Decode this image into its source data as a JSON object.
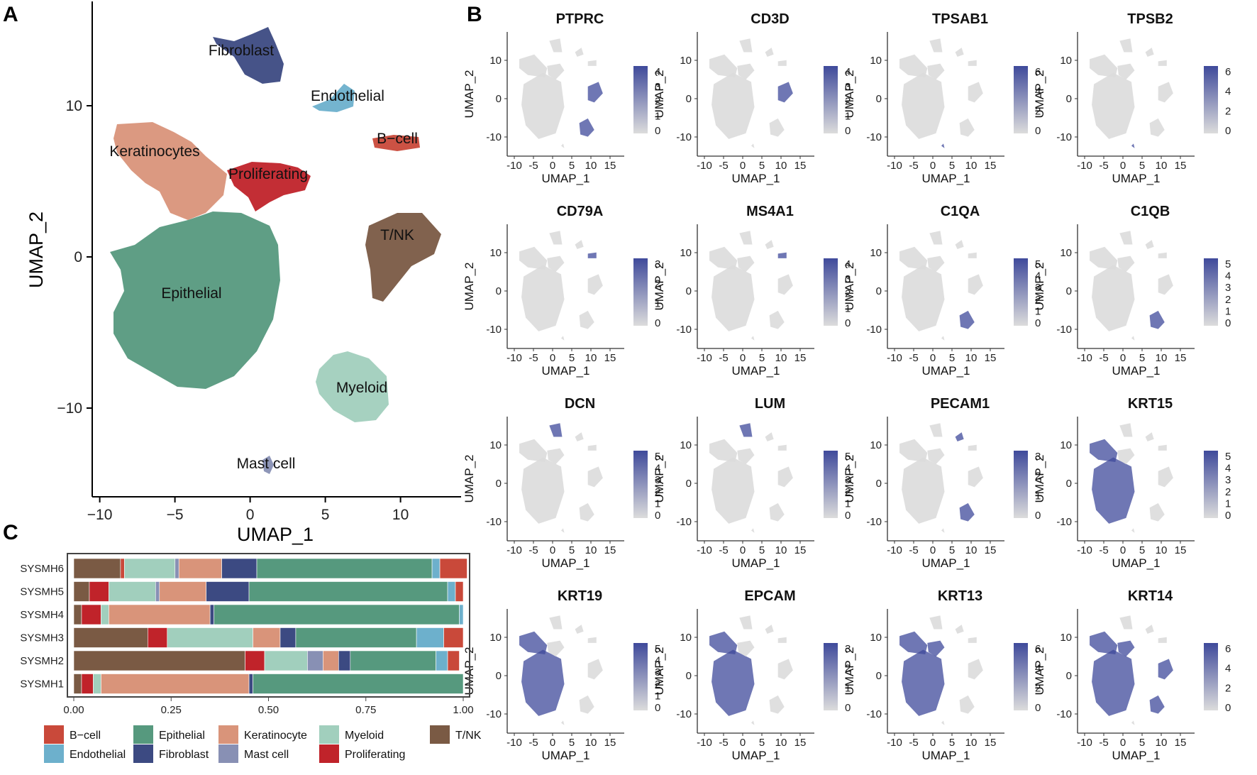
{
  "panels": {
    "a": "A",
    "b": "B",
    "c": "C"
  },
  "colors": {
    "B-cell": "#c9493a",
    "Endothelial": "#6db0cc",
    "Epithelial": "#56997e",
    "Fibroblast": "#3c4a82",
    "Keratinocyte": "#d9947a",
    "Mast cell": "#8890b4",
    "Myeloid": "#a1cfbd",
    "Proliferating": "#c0232a",
    "T/NK": "#7a5a44",
    "feature_low": "#dcdcdc",
    "feature_high": "#3f4a9b"
  },
  "umap": {
    "xlabel": "UMAP_1",
    "ylabel": "UMAP_2",
    "xticks": [
      "−10",
      "−5",
      "0",
      "5",
      "10"
    ],
    "yticks": [
      "10",
      "0",
      "−10"
    ],
    "clusters": [
      {
        "name": "Fibroblast",
        "color_key": "Fibroblast"
      },
      {
        "name": "Endothelial",
        "color_key": "Endothelial"
      },
      {
        "name": "B−cell",
        "color_key": "B-cell"
      },
      {
        "name": "Keratinocytes",
        "color_key": "Keratinocyte"
      },
      {
        "name": "Proliferating",
        "color_key": "Proliferating"
      },
      {
        "name": "T/NK",
        "color_key": "T/NK"
      },
      {
        "name": "Epithelial",
        "color_key": "Epithelial"
      },
      {
        "name": "Myeloid",
        "color_key": "Myeloid"
      },
      {
        "name": "Mast cell",
        "color_key": "Mast cell"
      }
    ]
  },
  "feature_plots": {
    "xlabel": "UMAP_1",
    "ylabel": "UMAP_2",
    "xticks": [
      "-10",
      "-5",
      "0",
      "5",
      "10",
      "15"
    ],
    "yticks": [
      "10",
      "0",
      "-10"
    ],
    "genes": [
      {
        "name": "PTPRC",
        "scale": [
          "4",
          "3",
          "2",
          "1",
          "0"
        ],
        "target": [
          "tnk",
          "myeloid"
        ]
      },
      {
        "name": "CD3D",
        "scale": [
          "4",
          "3",
          "2",
          "1",
          "0"
        ],
        "target": [
          "tnk"
        ]
      },
      {
        "name": "TPSAB1",
        "scale": [
          "6",
          "4",
          "2",
          "0"
        ],
        "target": [
          "mast"
        ]
      },
      {
        "name": "TPSB2",
        "scale": [
          "6",
          "4",
          "2",
          "0"
        ],
        "target": [
          "mast"
        ]
      },
      {
        "name": "CD79A",
        "scale": [
          "3",
          "2",
          "1",
          "0"
        ],
        "target": [
          "bcell"
        ]
      },
      {
        "name": "MS4A1",
        "scale": [
          "4",
          "3",
          "2",
          "1",
          "0"
        ],
        "target": [
          "bcell"
        ]
      },
      {
        "name": "C1QA",
        "scale": [
          "5",
          "4",
          "3",
          "2",
          "1",
          "0"
        ],
        "target": [
          "myeloid"
        ]
      },
      {
        "name": "C1QB",
        "scale": [
          "5",
          "4",
          "3",
          "2",
          "1",
          "0"
        ],
        "target": [
          "myeloid"
        ]
      },
      {
        "name": "DCN",
        "scale": [
          "5",
          "4",
          "3",
          "2",
          "1",
          "0"
        ],
        "target": [
          "fibro"
        ]
      },
      {
        "name": "LUM",
        "scale": [
          "5",
          "4",
          "3",
          "2",
          "1",
          "0"
        ],
        "target": [
          "fibro"
        ]
      },
      {
        "name": "PECAM1",
        "scale": [
          "3",
          "2",
          "1",
          "0"
        ],
        "target": [
          "endo",
          "myeloid"
        ]
      },
      {
        "name": "KRT15",
        "scale": [
          "5",
          "4",
          "3",
          "2",
          "1",
          "0"
        ],
        "target": [
          "kera",
          "epi"
        ]
      },
      {
        "name": "KRT19",
        "scale": [
          "5",
          "4",
          "3",
          "2",
          "1",
          "0"
        ],
        "target": [
          "kera",
          "epi"
        ]
      },
      {
        "name": "EPCAM",
        "scale": [
          "3",
          "2",
          "1",
          "0"
        ],
        "target": [
          "epi",
          "kera"
        ]
      },
      {
        "name": "KRT13",
        "scale": [
          "6",
          "4",
          "2",
          "0"
        ],
        "target": [
          "epi",
          "kera",
          "prolif"
        ]
      },
      {
        "name": "KRT14",
        "scale": [
          "6",
          "4",
          "2",
          "0"
        ],
        "target": [
          "epi",
          "kera",
          "prolif",
          "tnk",
          "myeloid"
        ]
      }
    ]
  },
  "chart_data": {
    "type": "bar",
    "orientation": "horizontal-stacked",
    "categories": [
      "SYSMH6",
      "SYSMH5",
      "SYSMH4",
      "SYSMH3",
      "SYSMH2",
      "SYSMH1"
    ],
    "xticks": [
      "0.00",
      "0.25",
      "0.50",
      "0.75",
      "1.00"
    ],
    "xlim": [
      0,
      1
    ],
    "series": [
      {
        "name": "T/NK",
        "values": [
          0.12,
          0.04,
          0.02,
          0.19,
          0.44,
          0.02
        ]
      },
      {
        "name": "B−cell",
        "values": [
          0.01,
          0.0,
          0.0,
          0.0,
          0.0,
          0.0
        ]
      },
      {
        "name": "Proliferating",
        "values": [
          0.0,
          0.05,
          0.05,
          0.05,
          0.05,
          0.03
        ]
      },
      {
        "name": "Myeloid",
        "values": [
          0.13,
          0.12,
          0.02,
          0.22,
          0.11,
          0.02
        ]
      },
      {
        "name": "Mast cell",
        "values": [
          0.01,
          0.01,
          0.0,
          0.0,
          0.04,
          0.0
        ]
      },
      {
        "name": "Keratinocyte",
        "values": [
          0.11,
          0.12,
          0.26,
          0.07,
          0.04,
          0.38
        ]
      },
      {
        "name": "Fibroblast",
        "values": [
          0.09,
          0.11,
          0.01,
          0.04,
          0.03,
          0.01
        ]
      },
      {
        "name": "Epithelial",
        "values": [
          0.45,
          0.51,
          0.63,
          0.31,
          0.22,
          0.54
        ]
      },
      {
        "name": "Endothelial",
        "values": [
          0.02,
          0.02,
          0.01,
          0.07,
          0.03,
          0.0
        ]
      },
      {
        "name": "B−cell",
        "values": [
          0.07,
          0.02,
          0.0,
          0.05,
          0.03,
          0.0
        ]
      }
    ],
    "legend": {
      "placement": "bottom",
      "items": [
        {
          "name": "B−cell",
          "color_key": "B-cell"
        },
        {
          "name": "Epithelial",
          "color_key": "Epithelial"
        },
        {
          "name": "Keratinocyte",
          "color_key": "Keratinocyte"
        },
        {
          "name": "Myeloid",
          "color_key": "Myeloid"
        },
        {
          "name": "T/NK",
          "color_key": "T/NK"
        },
        {
          "name": "Endothelial",
          "color_key": "Endothelial"
        },
        {
          "name": "Fibroblast",
          "color_key": "Fibroblast"
        },
        {
          "name": "Mast cell",
          "color_key": "Mast cell"
        },
        {
          "name": "Proliferating",
          "color_key": "Proliferating"
        }
      ]
    }
  }
}
